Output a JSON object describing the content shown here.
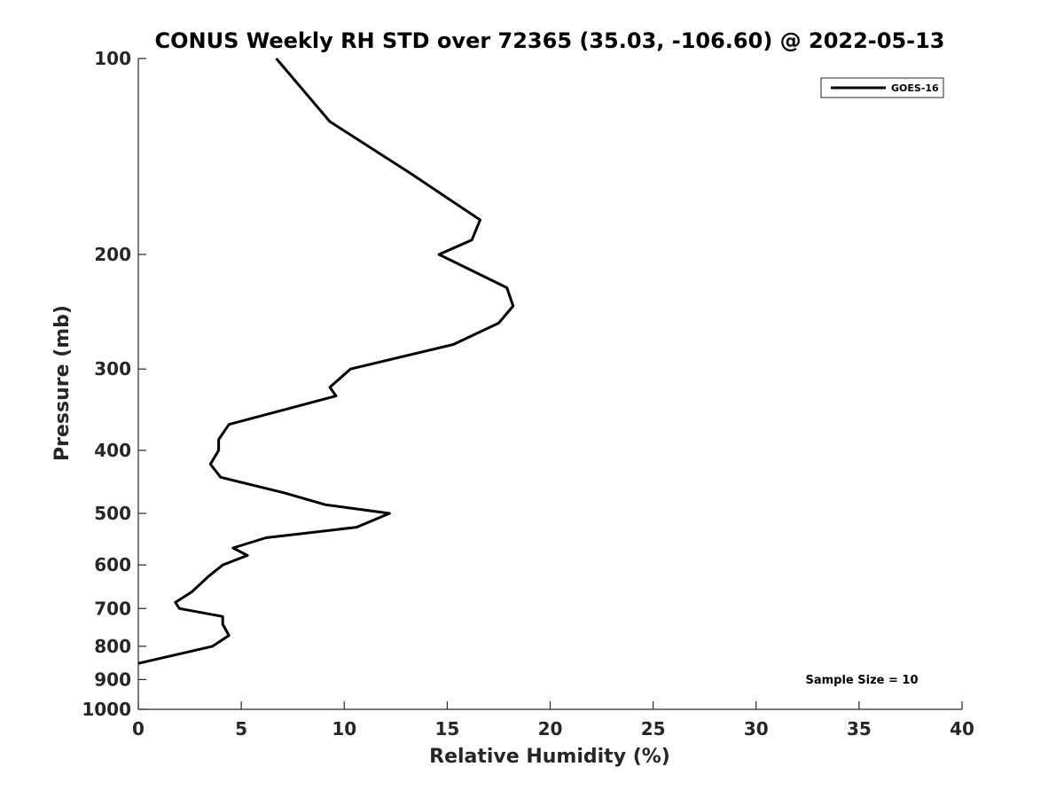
{
  "chart_data": {
    "type": "line",
    "title": "CONUS Weekly RH STD over 72365 (35.03, -106.60) @ 2022-05-13",
    "xlabel": "Relative Humidity (%)",
    "ylabel": "Pressure (mb)",
    "xlim": [
      0,
      40
    ],
    "ylim": [
      100,
      1000
    ],
    "yscale": "log",
    "yreversed": true,
    "xticks": [
      0,
      5,
      10,
      15,
      20,
      25,
      30,
      35,
      40
    ],
    "yticks": [
      100,
      200,
      300,
      400,
      500,
      600,
      700,
      800,
      900,
      1000
    ],
    "grid": false,
    "legend_position": "top-right",
    "series": [
      {
        "name": "GOES-16",
        "color": "#000000",
        "x": [
          6.7,
          9.3,
          13.2,
          16.6,
          16.2,
          14.6,
          17.9,
          18.2,
          17.5,
          15.3,
          10.3,
          9.3,
          9.6,
          4.4,
          3.9,
          3.9,
          3.5,
          4.0,
          7.1,
          9.1,
          12.2,
          10.6,
          6.2,
          4.6,
          5.3,
          4.1,
          3.4,
          2.6,
          1.8,
          2.0,
          4.1,
          4.1,
          4.4,
          3.6,
          0.0
        ],
        "y": [
          100,
          125,
          150,
          177,
          190,
          200,
          225,
          240,
          255,
          275,
          300,
          320,
          330,
          365,
          385,
          400,
          420,
          440,
          465,
          485,
          500,
          525,
          545,
          565,
          580,
          600,
          625,
          660,
          685,
          700,
          720,
          740,
          770,
          800,
          850
        ]
      }
    ],
    "annotations": [
      {
        "text": "Sample Size = 10",
        "position": "bottom-right"
      }
    ]
  }
}
